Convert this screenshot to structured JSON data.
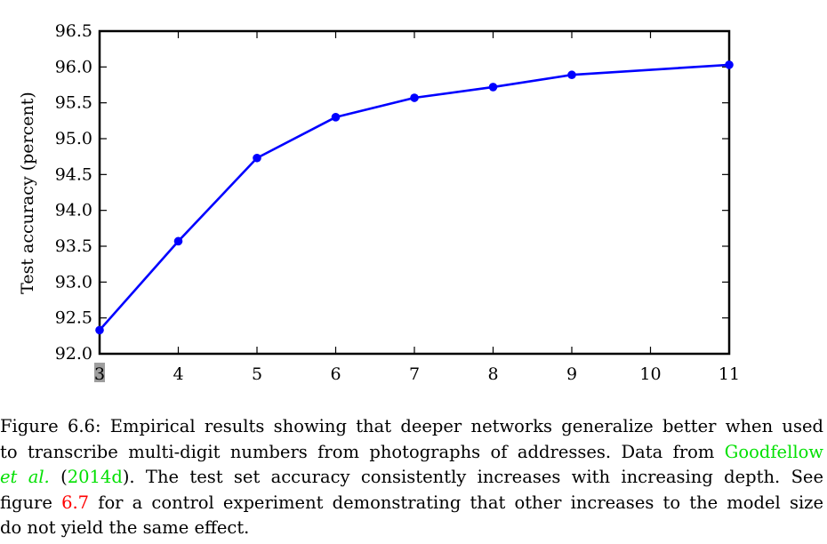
{
  "chart_data": {
    "type": "line",
    "xlabel": "",
    "ylabel": "Test accuracy (percent)",
    "x": [
      3,
      4,
      5,
      6,
      7,
      8,
      9,
      10,
      11
    ],
    "series": [
      {
        "x": [
          3,
          4,
          5,
          6,
          7,
          8,
          9,
          11
        ],
        "values": [
          92.33,
          93.57,
          94.73,
          95.3,
          95.57,
          95.72,
          95.89,
          96.03
        ],
        "color": "#0000ff"
      }
    ],
    "xlim": [
      3,
      11
    ],
    "ylim": [
      92.0,
      96.5
    ],
    "x_ticks": [
      "3",
      "4",
      "5",
      "6",
      "7",
      "8",
      "9",
      "10",
      "11"
    ],
    "y_ticks": [
      "92.0",
      "92.5",
      "93.0",
      "93.5",
      "94.0",
      "94.5",
      "95.0",
      "95.5",
      "96.0",
      "96.5"
    ],
    "grid": false,
    "legend": "none"
  },
  "caption": {
    "lines": [
      [
        {
          "text": "Figure 6.6: Empirical results showing that deeper networks generalize better when used",
          "style": ""
        }
      ],
      [
        {
          "text": "to transcribe multi-digit numbers from photographs of addresses. Data from ",
          "style": ""
        },
        {
          "text": "Goodfellow",
          "style": "link-green"
        }
      ],
      [
        {
          "text": "et al.",
          "style": "link-green italic"
        },
        {
          "text": " (",
          "style": ""
        },
        {
          "text": "2014d",
          "style": "link-green"
        },
        {
          "text": ").  The test set accuracy consistently increases with increasing depth.  See",
          "style": ""
        }
      ],
      [
        {
          "text": "figure ",
          "style": ""
        },
        {
          "text": "6.7",
          "style": "link-red"
        },
        {
          "text": " for a control experiment demonstrating that other increases to the model size",
          "style": ""
        }
      ],
      [
        {
          "text": "do not yield the same effect.",
          "style": ""
        }
      ]
    ]
  }
}
